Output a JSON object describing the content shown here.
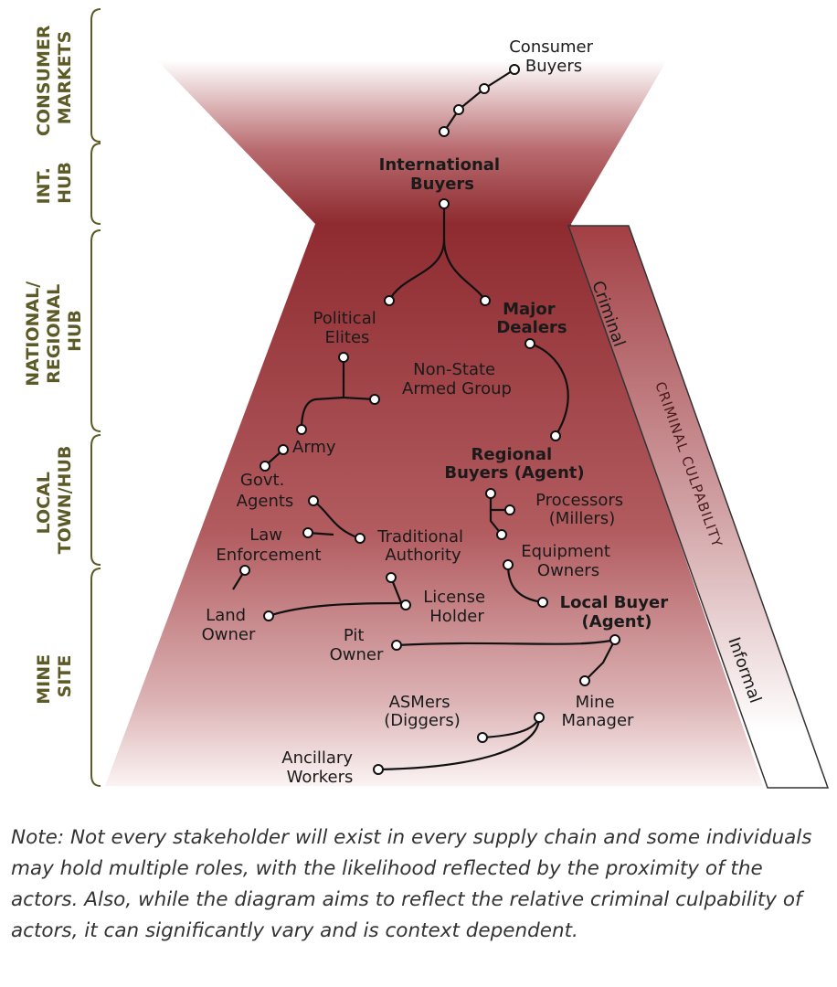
{
  "bands": [
    {
      "id": "consumer",
      "lines": [
        "CONSUMER",
        "MARKETS"
      ]
    },
    {
      "id": "int",
      "lines": [
        "INT.",
        "HUB"
      ]
    },
    {
      "id": "national",
      "lines": [
        "NATIONAL/",
        "REGIONAL",
        "HUB"
      ]
    },
    {
      "id": "local",
      "lines": [
        "LOCAL",
        "TOWN/HUB"
      ]
    },
    {
      "id": "mine",
      "lines": [
        "MINE",
        "SITE"
      ]
    }
  ],
  "actors": {
    "consumer_buyers": [
      "Consumer",
      "Buyers"
    ],
    "international_buyers": [
      "International",
      "Buyers"
    ],
    "political_elites": [
      "Political",
      "Elites"
    ],
    "major_dealers": [
      "Major",
      "Dealers"
    ],
    "non_state": [
      "Non-State",
      "Armed Group"
    ],
    "army": [
      "Army"
    ],
    "regional_buyers": [
      "Regional",
      "Buyers (Agent)"
    ],
    "govt_agents": [
      "Govt.",
      "Agents"
    ],
    "processors": [
      "Processors",
      "(Millers)"
    ],
    "law_enforcement": [
      "Law",
      "Enforcement"
    ],
    "traditional_authority": [
      "Traditional",
      "Authority"
    ],
    "equipment_owners": [
      "Equipment",
      "Owners"
    ],
    "license_holder": [
      "License",
      "Holder"
    ],
    "land_owner": [
      "Land",
      "Owner"
    ],
    "local_buyer": [
      "Local Buyer",
      "(Agent)"
    ],
    "pit_owner": [
      "Pit",
      "Owner"
    ],
    "asmers": [
      "ASMers",
      "(Diggers)"
    ],
    "mine_manager": [
      "Mine",
      "Manager"
    ],
    "ancillary": [
      "Ancillary",
      "Workers"
    ]
  },
  "culpability": {
    "top": "Criminal",
    "axis": "CRIMINAL CULPABILITY",
    "bottom": "Informal"
  },
  "colors": {
    "funnel_dark": "#8e2b30",
    "funnel_light": "#ffffff",
    "band_text": "#5c5a26"
  },
  "note": "Note: Not every stakeholder will exist in every supply chain and some individuals may hold multiple roles, with the likelihood reflected by the proximity of the actors. Also, while the diagram aims to reflect the relative criminal culpability of actors, it can significantly vary and is context dependent."
}
